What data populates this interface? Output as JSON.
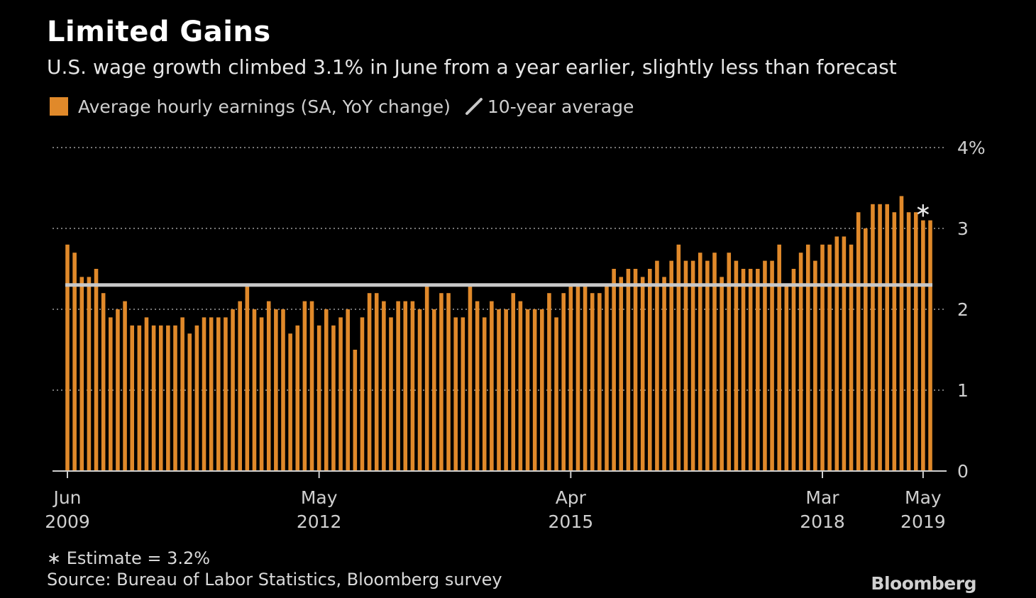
{
  "title": "Limited Gains",
  "subtitle": "U.S. wage growth climbed 3.1% in June from a year earlier, slightly less than forecast",
  "legend": {
    "bars_label": "Average hourly earnings (SA, YoY change)",
    "line_label": "10-year average"
  },
  "notes": {
    "estimate": "∗ Estimate = 3.2%",
    "source": "Source: Bureau of Labor Statistics, Bloomberg survey"
  },
  "brand": "Bloomberg",
  "colors": {
    "bar": "#e0892a",
    "average_line": "#c8c8c8",
    "grid": "#777777",
    "text": "#cfcfcf"
  },
  "chart_data": {
    "type": "bar",
    "x_start": "2009-06",
    "x_end": "2019-06",
    "ylim": [
      0,
      4
    ],
    "yticks": [
      0,
      1,
      2,
      3,
      4
    ],
    "ytick_labels": [
      "0",
      "1",
      "2",
      "3",
      "4%"
    ],
    "xticks": [
      {
        "month": "Jun",
        "year": "2009",
        "index": 0
      },
      {
        "month": "May",
        "year": "2012",
        "index": 35
      },
      {
        "month": "Apr",
        "year": "2015",
        "index": 70
      },
      {
        "month": "Mar",
        "year": "2018",
        "index": 105
      },
      {
        "month": "May",
        "year": "2019",
        "index": 119
      }
    ],
    "grid": "horizontal dotted",
    "ten_year_average": 2.3,
    "estimate": {
      "value": 3.2,
      "index": 120,
      "marker": "∗"
    },
    "series": [
      {
        "name": "Average hourly earnings (SA, YoY change)",
        "values": [
          2.8,
          2.7,
          2.4,
          2.4,
          2.5,
          2.2,
          1.9,
          2.0,
          2.1,
          1.8,
          1.8,
          1.9,
          1.8,
          1.8,
          1.8,
          1.8,
          1.9,
          1.7,
          1.8,
          1.9,
          1.9,
          1.9,
          1.9,
          2.0,
          2.1,
          2.3,
          2.0,
          1.9,
          2.1,
          2.0,
          2.0,
          1.7,
          1.8,
          2.1,
          2.1,
          1.8,
          2.0,
          1.8,
          1.9,
          2.0,
          1.5,
          1.9,
          2.2,
          2.2,
          2.1,
          1.9,
          2.1,
          2.1,
          2.1,
          2.0,
          2.3,
          2.0,
          2.2,
          2.2,
          1.9,
          1.9,
          2.3,
          2.1,
          1.9,
          2.1,
          2.0,
          2.0,
          2.2,
          2.1,
          2.0,
          2.0,
          2.0,
          2.2,
          1.9,
          2.2,
          2.3,
          2.3,
          2.3,
          2.2,
          2.2,
          2.3,
          2.5,
          2.4,
          2.5,
          2.5,
          2.4,
          2.5,
          2.6,
          2.4,
          2.6,
          2.8,
          2.6,
          2.6,
          2.7,
          2.6,
          2.7,
          2.4,
          2.7,
          2.6,
          2.5,
          2.5,
          2.5,
          2.6,
          2.6,
          2.8,
          2.3,
          2.5,
          2.7,
          2.8,
          2.6,
          2.8,
          2.8,
          2.9,
          2.9,
          2.8,
          3.2,
          3.0,
          3.3,
          3.3,
          3.3,
          3.2,
          3.4,
          3.2,
          3.2,
          3.1,
          3.1
        ]
      }
    ]
  }
}
